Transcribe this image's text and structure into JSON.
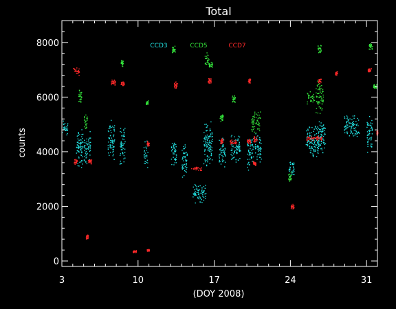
{
  "chart_data": {
    "type": "scatter",
    "title": "Total",
    "xlabel": "(DOY 2008)",
    "ylabel": "counts",
    "xlim": [
      3,
      32
    ],
    "ylim": [
      -200,
      8800
    ],
    "xticks": [
      3,
      10,
      17,
      24,
      31
    ],
    "yticks": [
      0,
      2000,
      4000,
      6000,
      8000
    ],
    "background": "#000000",
    "axis_color": "#ffffff",
    "series": [
      {
        "name": "CCD3",
        "color": "#22e3e3",
        "clusters": [
          {
            "x": [
              3.0,
              3.5
            ],
            "y": [
              4500,
              5300
            ]
          },
          {
            "x": [
              4.3,
              4.9
            ],
            "y": [
              3300,
              5000
            ]
          },
          {
            "x": [
              5.0,
              5.6
            ],
            "y": [
              3500,
              4800
            ]
          },
          {
            "x": [
              7.2,
              7.8
            ],
            "y": [
              3600,
              5200
            ]
          },
          {
            "x": [
              8.3,
              8.8
            ],
            "y": [
              3500,
              5100
            ]
          },
          {
            "x": [
              10.5,
              10.9
            ],
            "y": [
              3400,
              4500
            ]
          },
          {
            "x": [
              13.0,
              13.5
            ],
            "y": [
              3400,
              4600
            ]
          },
          {
            "x": [
              14.0,
              14.5
            ],
            "y": [
              3000,
              4400
            ]
          },
          {
            "x": [
              15.0,
              16.2
            ],
            "y": [
              2100,
              2900
            ]
          },
          {
            "x": [
              16.0,
              16.8
            ],
            "y": [
              3400,
              5200
            ]
          },
          {
            "x": [
              17.4,
              18.0
            ],
            "y": [
              3400,
              4600
            ]
          },
          {
            "x": [
              18.5,
              19.4
            ],
            "y": [
              3600,
              4700
            ]
          },
          {
            "x": [
              20.0,
              20.6
            ],
            "y": [
              3300,
              4600
            ]
          },
          {
            "x": [
              20.7,
              21.3
            ],
            "y": [
              3600,
              4700
            ]
          },
          {
            "x": [
              23.8,
              24.3
            ],
            "y": [
              2900,
              3800
            ]
          },
          {
            "x": [
              25.4,
              26.6
            ],
            "y": [
              3700,
              5000
            ]
          },
          {
            "x": [
              26.5,
              27.2
            ],
            "y": [
              3900,
              5300
            ]
          },
          {
            "x": [
              28.9,
              30.3
            ],
            "y": [
              4500,
              5400
            ]
          },
          {
            "x": [
              31.0,
              31.5
            ],
            "y": [
              3900,
              5400
            ]
          }
        ]
      },
      {
        "name": "CCD5",
        "color": "#33e03a",
        "clusters": [
          {
            "x": [
              5.0,
              5.3
            ],
            "y": [
              4800,
              5400
            ]
          },
          {
            "x": [
              4.5,
              4.8
            ],
            "y": [
              5800,
              6300
            ]
          },
          {
            "x": [
              8.4,
              8.6
            ],
            "y": [
              7100,
              7400
            ]
          },
          {
            "x": [
              10.7,
              10.9
            ],
            "y": [
              5700,
              5900
            ]
          },
          {
            "x": [
              13.1,
              13.4
            ],
            "y": [
              7600,
              7900
            ]
          },
          {
            "x": [
              16.1,
              16.5
            ],
            "y": [
              7100,
              7700
            ]
          },
          {
            "x": [
              16.5,
              16.8
            ],
            "y": [
              7100,
              7300
            ]
          },
          {
            "x": [
              17.5,
              17.8
            ],
            "y": [
              5100,
              5400
            ]
          },
          {
            "x": [
              18.6,
              18.9
            ],
            "y": [
              5800,
              6100
            ]
          },
          {
            "x": [
              20.4,
              21.2
            ],
            "y": [
              4600,
              5600
            ]
          },
          {
            "x": [
              23.8,
              24.1
            ],
            "y": [
              2900,
              3300
            ]
          },
          {
            "x": [
              25.5,
              26.2
            ],
            "y": [
              5700,
              6300
            ]
          },
          {
            "x": [
              26.3,
              27.0
            ],
            "y": [
              5300,
              6700
            ]
          },
          {
            "x": [
              26.5,
              26.8
            ],
            "y": [
              7600,
              8000
            ]
          },
          {
            "x": [
              31.2,
              31.5
            ],
            "y": [
              7700,
              8000
            ]
          },
          {
            "x": [
              31.6,
              31.9
            ],
            "y": [
              6300,
              6500
            ]
          }
        ]
      },
      {
        "name": "CCD7",
        "color": "#ff2a2a",
        "clusters": [
          {
            "x": [
              4.0,
              4.6
            ],
            "y": [
              6800,
              7100
            ]
          },
          {
            "x": [
              4.1,
              4.4
            ],
            "y": [
              3500,
              3800
            ]
          },
          {
            "x": [
              5.4,
              5.7
            ],
            "y": [
              3550,
              3750
            ]
          },
          {
            "x": [
              5.2,
              5.4
            ],
            "y": [
              800,
              1000
            ]
          },
          {
            "x": [
              7.5,
              7.9
            ],
            "y": [
              6400,
              6700
            ]
          },
          {
            "x": [
              8.4,
              8.7
            ],
            "y": [
              6400,
              6600
            ]
          },
          {
            "x": [
              9.5,
              9.8
            ],
            "y": [
              300,
              420
            ]
          },
          {
            "x": [
              10.8,
              11.0
            ],
            "y": [
              350,
              450
            ]
          },
          {
            "x": [
              10.8,
              11.0
            ],
            "y": [
              4200,
              4400
            ]
          },
          {
            "x": [
              13.3,
              13.6
            ],
            "y": [
              6300,
              6600
            ]
          },
          {
            "x": [
              14.8,
              15.8
            ],
            "y": [
              3300,
              3500
            ]
          },
          {
            "x": [
              16.4,
              16.7
            ],
            "y": [
              6500,
              6700
            ]
          },
          {
            "x": [
              17.5,
              17.8
            ],
            "y": [
              4300,
              4500
            ]
          },
          {
            "x": [
              18.4,
              19.0
            ],
            "y": [
              4250,
              4450
            ]
          },
          {
            "x": [
              20.0,
              20.3
            ],
            "y": [
              4300,
              4500
            ]
          },
          {
            "x": [
              20.6,
              20.9
            ],
            "y": [
              4350,
              4600
            ]
          },
          {
            "x": [
              20.5,
              20.8
            ],
            "y": [
              3500,
              3700
            ]
          },
          {
            "x": [
              20.1,
              20.3
            ],
            "y": [
              6500,
              6700
            ]
          },
          {
            "x": [
              24.0,
              24.3
            ],
            "y": [
              1900,
              2100
            ]
          },
          {
            "x": [
              25.4,
              26.2
            ],
            "y": [
              4400,
              4600
            ]
          },
          {
            "x": [
              26.3,
              26.9
            ],
            "y": [
              4400,
              4600
            ]
          },
          {
            "x": [
              26.5,
              26.8
            ],
            "y": [
              6500,
              6700
            ]
          },
          {
            "x": [
              28.1,
              28.3
            ],
            "y": [
              6800,
              7000
            ]
          },
          {
            "x": [
              31.1,
              31.4
            ],
            "y": [
              6900,
              7100
            ]
          },
          {
            "x": [
              31.9,
              32.0
            ],
            "y": [
              4600,
              4800
            ]
          }
        ]
      }
    ]
  }
}
